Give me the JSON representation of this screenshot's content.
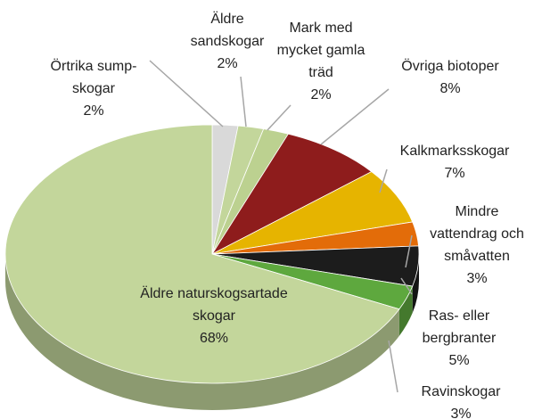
{
  "chart_data": {
    "type": "pie",
    "categories": [
      [
        "Örtrika sump-",
        "skogar"
      ],
      [
        "Äldre",
        "sandskogar"
      ],
      [
        "Mark med",
        "mycket gamla",
        "träd"
      ],
      [
        "Övriga biotoper"
      ],
      [
        "Kalkmarksskogar"
      ],
      [
        "Mindre",
        "vattendrag och",
        "småvatten"
      ],
      [
        "Ras- eller",
        "bergbranter"
      ],
      [
        "Ravinskogar"
      ],
      [
        "Äldre naturskogsartade",
        "skogar"
      ]
    ],
    "values": [
      2,
      2,
      2,
      8,
      7,
      3,
      5,
      3,
      68
    ],
    "value_labels": [
      "2%",
      "2%",
      "2%",
      "8%",
      "7%",
      "3%",
      "5%",
      "3%",
      "68%"
    ],
    "colors": [
      "#d9d9d9",
      "#c3d69b",
      "#bcd190",
      "#8e1c1c",
      "#e6b400",
      "#e36c09",
      "#1c1c1c",
      "#5ea83e",
      "#c3d69b"
    ]
  }
}
